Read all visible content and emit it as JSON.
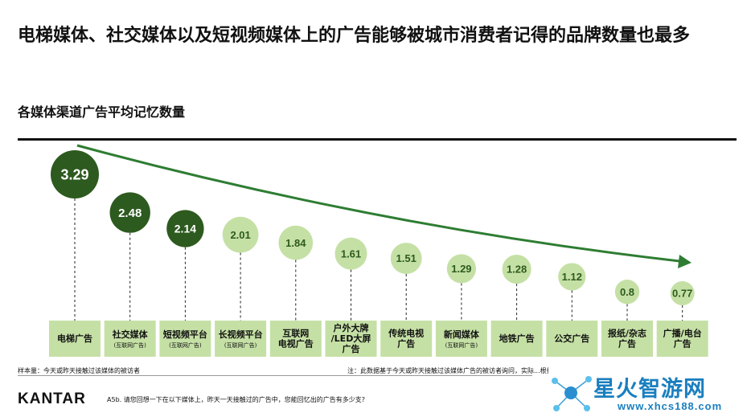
{
  "title": "电梯媒体、社交媒体以及短视频媒体上的广告能够被城市消费者记得的品牌数量也最多",
  "subtitle": "各媒体渠道广告平均记忆数量",
  "chart_data": {
    "type": "bar",
    "categories": [
      {
        "label": "电梯广告",
        "sub": ""
      },
      {
        "label": "社交媒体",
        "sub": "(互联网广告)"
      },
      {
        "label": "短视频平台",
        "sub": "(互联网广告)"
      },
      {
        "label": "长视频平台",
        "sub": "(互联网广告)"
      },
      {
        "label": "互联网\n电视广告",
        "sub": ""
      },
      {
        "label": "户外大牌\n/LED大屏\n广告",
        "sub": ""
      },
      {
        "label": "传统电视\n广告",
        "sub": ""
      },
      {
        "label": "新闻媒体",
        "sub": "(互联网广告)"
      },
      {
        "label": "地铁广告",
        "sub": ""
      },
      {
        "label": "公交广告",
        "sub": ""
      },
      {
        "label": "报纸/杂志\n广告",
        "sub": ""
      },
      {
        "label": "广播/电台\n广告",
        "sub": ""
      }
    ],
    "values": [
      3.29,
      2.48,
      2.14,
      2.01,
      1.84,
      1.61,
      1.51,
      1.29,
      1.28,
      1.12,
      0.8,
      0.77
    ],
    "value_labels": [
      "3.29",
      "2.48",
      "2.14",
      "2.01",
      "1.84",
      "1.61",
      "1.51",
      "1.29",
      "1.28",
      "1.12",
      "0.8",
      "0.77"
    ],
    "ylim": [
      0.77,
      3.29
    ],
    "highlighted_count": 3,
    "colors": {
      "dark": "#2d5a1e",
      "light": "#c5e0a5",
      "category_bg": "#c5e0a5",
      "arrow": "#2e7d32"
    }
  },
  "footnotes": {
    "base": "样本量：今天或昨天接触过该媒体的被访者",
    "note": "注：此数据基于今天或昨天接触过该媒体广告的被访者询问，实际...根据所有媒体广告判断..."
  },
  "brand": "KANTAR",
  "question": "A5b. 请您回想一下在以下媒体上，昨天一天接触过的广告中，您能回忆出的广告有多少支?",
  "watermark": {
    "title": "星火智游网",
    "url": "www.xhcs188.com"
  }
}
